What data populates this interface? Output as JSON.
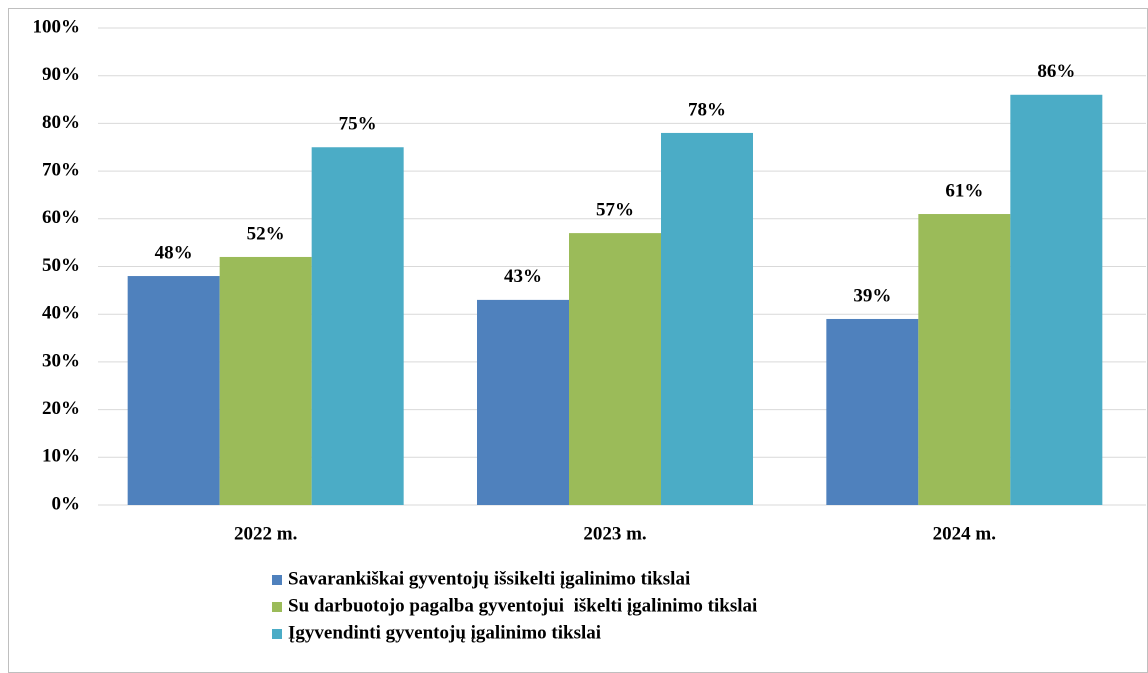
{
  "chart_data": {
    "type": "bar",
    "categories": [
      "2022 m.",
      "2023 m.",
      "2024 m."
    ],
    "series": [
      {
        "name": "Savarankiškai gyventojų išsikelti įgalinimo tikslai",
        "color": "#4f81bd",
        "values": [
          48,
          43,
          39
        ],
        "value_labels": [
          "48%",
          "43%",
          "39%"
        ]
      },
      {
        "name": "Su darbuotojo pagalba gyventojui  iškelti įgalinimo tikslai",
        "color": "#9bbb59",
        "values": [
          52,
          57,
          61
        ],
        "value_labels": [
          "52%",
          "57%",
          "61%"
        ]
      },
      {
        "name": "Įgyvendinti gyventojų įgalinimo tikslai",
        "color": "#4bacc6",
        "values": [
          75,
          78,
          86
        ],
        "value_labels": [
          "75%",
          "78%",
          "86%"
        ]
      }
    ],
    "ylim": [
      0,
      100
    ],
    "yticks": [
      {
        "value": 0,
        "label": "0%"
      },
      {
        "value": 10,
        "label": "10%"
      },
      {
        "value": 20,
        "label": "20%"
      },
      {
        "value": 30,
        "label": "30%"
      },
      {
        "value": 40,
        "label": "40%"
      },
      {
        "value": 50,
        "label": "50%"
      },
      {
        "value": 60,
        "label": "60%"
      },
      {
        "value": 70,
        "label": "70%"
      },
      {
        "value": 80,
        "label": "80%"
      },
      {
        "value": 90,
        "label": "90%"
      },
      {
        "value": 100,
        "label": "100%"
      }
    ],
    "grid": true,
    "legend": "bottom"
  }
}
